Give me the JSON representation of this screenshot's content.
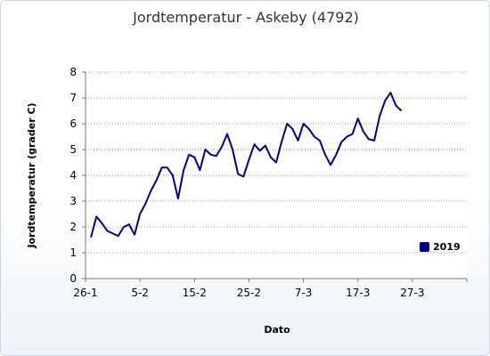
{
  "chart_data": {
    "type": "line",
    "title": "Jordtemperatur - Askeby (4792)",
    "xlabel": "Dato",
    "ylabel": "Jordtemperatur (grader C)",
    "x_tick_labels": [
      "26-1",
      "5-2",
      "15-2",
      "25-2",
      "7-3",
      "17-3",
      "27-3"
    ],
    "x_tick_positions": [
      0,
      10,
      20,
      30,
      40,
      50,
      60
    ],
    "xlim": [
      0,
      70
    ],
    "ylim": [
      0,
      8
    ],
    "y_ticks": [
      0,
      1,
      2,
      3,
      4,
      5,
      6,
      7,
      8
    ],
    "grid": "horizontal dotted",
    "legend_position": "bottom-right",
    "series": [
      {
        "name": "2019",
        "color": "#000080",
        "x": [
          1,
          2,
          3,
          4,
          5,
          6,
          7,
          8,
          9,
          10,
          11,
          12,
          13,
          14,
          15,
          16,
          17,
          18,
          19,
          20,
          21,
          22,
          23,
          24,
          25,
          26,
          27,
          28,
          29,
          30,
          31,
          32,
          33,
          34,
          35,
          36,
          37,
          38,
          39,
          40,
          41,
          42,
          43,
          44,
          45,
          46,
          47,
          48,
          49,
          50,
          51,
          52,
          53,
          54,
          55,
          56,
          57,
          58,
          59
        ],
        "values": [
          1.6,
          2.4,
          2.15,
          1.85,
          1.75,
          1.65,
          2.0,
          2.1,
          1.7,
          2.5,
          2.9,
          3.4,
          3.8,
          4.3,
          4.3,
          4.0,
          3.1,
          4.2,
          4.8,
          4.7,
          4.2,
          5.0,
          4.8,
          4.75,
          5.1,
          5.6,
          5.0,
          4.05,
          3.95,
          4.6,
          5.2,
          4.95,
          5.15,
          4.7,
          4.5,
          5.3,
          6.0,
          5.8,
          5.35,
          6.0,
          5.8,
          5.5,
          5.35,
          4.8,
          4.4,
          4.8,
          5.3,
          5.5,
          5.6,
          6.2,
          5.7,
          5.4,
          5.35,
          6.3,
          6.9,
          7.2,
          6.7,
          6.5,
          null
        ]
      }
    ]
  }
}
